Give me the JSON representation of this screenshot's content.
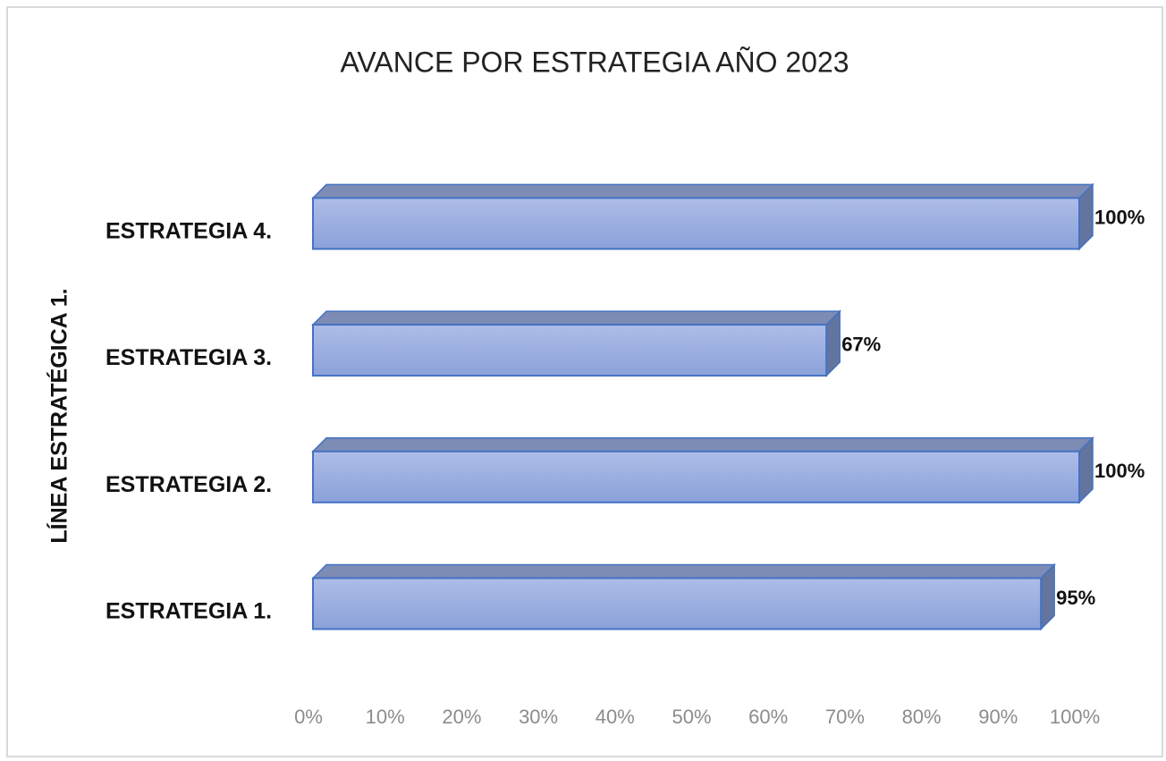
{
  "chart_data": {
    "type": "bar3d_horizontal",
    "title": "AVANCE  POR ESTRATEGIA  AÑO 2023",
    "y_label": "LÍNEA  ESTRATÉGICA 1.",
    "categories": [
      "ESTRATEGIA 1.",
      "ESTRATEGIA 2.",
      "ESTRATEGIA 3.",
      "ESTRATEGIA 4."
    ],
    "values": [
      95,
      100,
      67,
      100
    ],
    "value_labels": [
      "95%",
      "100%",
      "67%",
      "100%"
    ],
    "color": "#9aade0",
    "xlim": [
      0,
      100
    ],
    "xticks": [
      {
        "value": 0,
        "label": "0%"
      },
      {
        "value": 10,
        "label": "10%"
      },
      {
        "value": 20,
        "label": "20%"
      },
      {
        "value": 30,
        "label": "30%"
      },
      {
        "value": 40,
        "label": "40%"
      },
      {
        "value": 50,
        "label": "50%"
      },
      {
        "value": 60,
        "label": "60%"
      },
      {
        "value": 70,
        "label": "70%"
      },
      {
        "value": 80,
        "label": "80%"
      },
      {
        "value": 90,
        "label": "90%"
      },
      {
        "value": 100,
        "label": "100%"
      }
    ],
    "grid": false
  }
}
